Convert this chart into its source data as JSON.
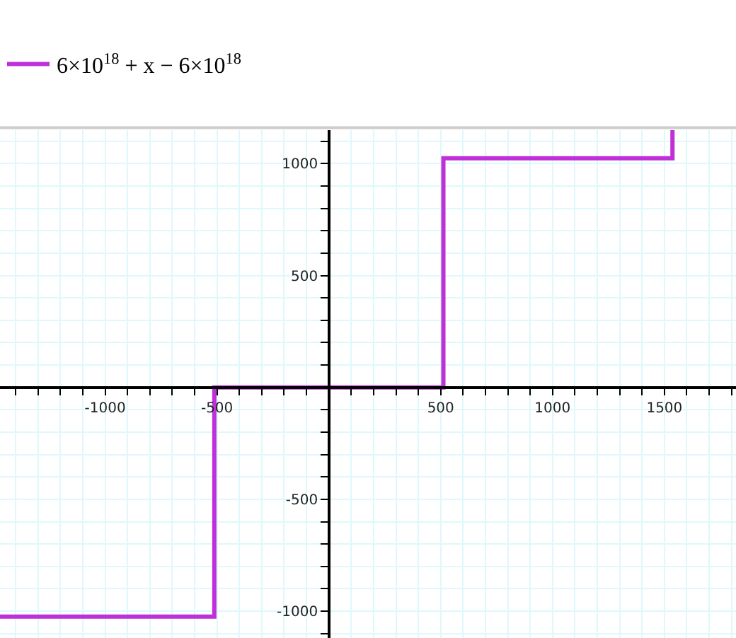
{
  "chart_data": {
    "type": "step",
    "x": [
      -1470,
      -512,
      512,
      1536
    ],
    "series": [
      {
        "name": "6×10$^{18}$ + x − 6×10$^{18}$",
        "color": "#c030d8",
        "values": [
          -1024,
          0,
          1024,
          1150
        ]
      }
    ],
    "xlim": [
      -1470,
      1820
    ],
    "ylim": [
      -1120,
      1150
    ],
    "xticks": [
      {
        "value": -1400,
        "label": null
      },
      {
        "value": -1300,
        "label": null
      },
      {
        "value": -1200,
        "label": null
      },
      {
        "value": -1100,
        "label": null
      },
      -1000,
      {
        "value": -900,
        "label": null
      },
      {
        "value": -800,
        "label": null
      },
      {
        "value": -700,
        "label": null
      },
      {
        "value": -600,
        "label": null
      },
      -500,
      {
        "value": -400,
        "label": null
      },
      {
        "value": -300,
        "label": null
      },
      {
        "value": -200,
        "label": null
      },
      {
        "value": -100,
        "label": null
      },
      {
        "value": 100,
        "label": null
      },
      {
        "value": 200,
        "label": null
      },
      {
        "value": 300,
        "label": null
      },
      {
        "value": 400,
        "label": null
      },
      500,
      {
        "value": 600,
        "label": null
      },
      {
        "value": 700,
        "label": null
      },
      {
        "value": 800,
        "label": null
      },
      {
        "value": 900,
        "label": null
      },
      1000,
      {
        "value": 1100,
        "label": null
      },
      {
        "value": 1200,
        "label": null
      },
      {
        "value": 1300,
        "label": null
      },
      {
        "value": 1400,
        "label": null
      },
      1500,
      {
        "value": 1600,
        "label": null
      },
      {
        "value": 1700,
        "label": null
      },
      {
        "value": 1800,
        "label": null
      }
    ],
    "yticks": [
      {
        "value": -1100,
        "label": null
      },
      -1000,
      {
        "value": -900,
        "label": null
      },
      {
        "value": -800,
        "label": null
      },
      {
        "value": -700,
        "label": null
      },
      {
        "value": -600,
        "label": null
      },
      -500,
      {
        "value": -400,
        "label": null
      },
      {
        "value": -300,
        "label": null
      },
      {
        "value": -200,
        "label": null
      },
      {
        "value": -100,
        "label": null
      },
      {
        "value": 100,
        "label": null
      },
      {
        "value": 200,
        "label": null
      },
      {
        "value": 300,
        "label": null
      },
      {
        "value": 400,
        "label": null
      },
      500,
      {
        "value": 600,
        "label": null
      },
      {
        "value": 700,
        "label": null
      },
      {
        "value": 800,
        "label": null
      },
      {
        "value": 900,
        "label": null
      },
      1000,
      {
        "value": 1100,
        "label": null
      }
    ],
    "grid": true,
    "legend": "top",
    "line_style": "solid",
    "marker": "none"
  }
}
